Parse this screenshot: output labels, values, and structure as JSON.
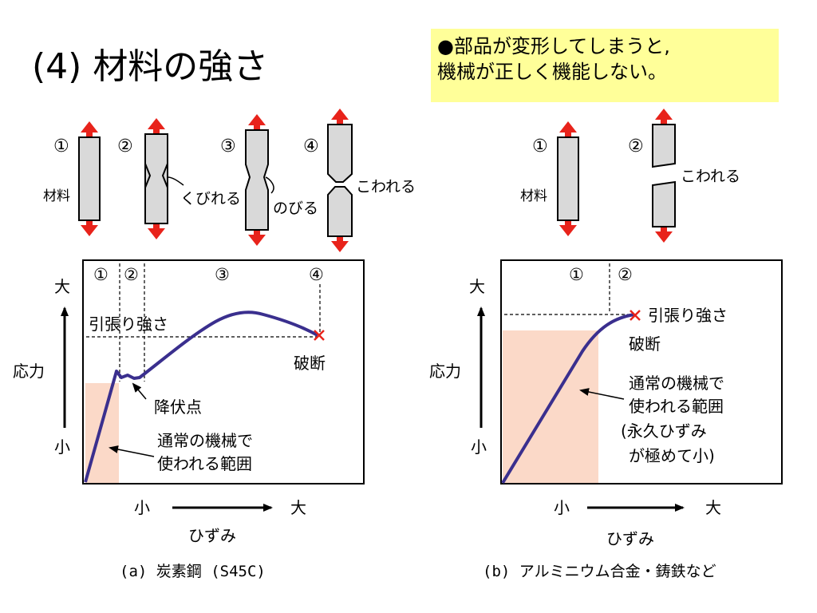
{
  "title": "(4) 材料の強さ",
  "note": {
    "line1": "●部品が変形してしまうと,",
    "line2": "機械が正しく機能しない。"
  },
  "colors": {
    "arrow": "#e8231b",
    "bar": "#d9d9d9",
    "curve": "#3a2f8e",
    "zone": "#fbd9c8",
    "note_bg": "#ffff99",
    "fracture": "#e8231b"
  },
  "left": {
    "stages": {
      "s1": "①",
      "s2": "②",
      "s3": "③",
      "s4": "④"
    },
    "labels": {
      "material": "材料",
      "neck": "くびれる",
      "stretch": "のびる",
      "break": "こわれる"
    },
    "chart": {
      "regions": {
        "r1": "①",
        "r2": "②",
        "r3": "③",
        "r4": "④"
      },
      "y_high": "大",
      "y_label": "応力",
      "y_low": "小",
      "x_low": "小",
      "x_high": "大",
      "x_label": "ひずみ",
      "tensile": "引張り強さ",
      "fracture": "破断",
      "yield": "降伏点",
      "normal_line1": "通常の機械で",
      "normal_line2": "使われる範囲"
    },
    "caption": "(a) 炭素鋼 (S45C)"
  },
  "right": {
    "stages": {
      "s1": "①",
      "s2": "②"
    },
    "labels": {
      "material": "材料",
      "break": "こわれる"
    },
    "chart": {
      "regions": {
        "r1": "①",
        "r2": "②"
      },
      "y_high": "大",
      "y_label": "応力",
      "y_low": "小",
      "x_low": "小",
      "x_high": "大",
      "x_label": "ひずみ",
      "tensile": "引張り強さ",
      "fracture": "破断",
      "normal_line1": "通常の機械で",
      "normal_line2": "使われる範囲",
      "normal_line3": "(永久ひずみ",
      "normal_line4": "が極めて小)"
    },
    "caption": "(b) アルミニウム合金・鋳鉄など"
  }
}
